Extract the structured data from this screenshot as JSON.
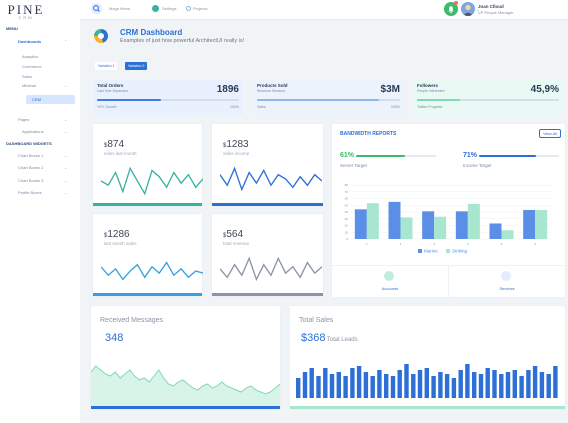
{
  "sidebar": {
    "logo": {
      "main": "PINE",
      "sub": "CRM"
    },
    "menu_header": "MENU",
    "dashboards": "Dashboards",
    "items": [
      "Analytics",
      "Commerce",
      "Sales",
      "Minimal",
      "CRM"
    ],
    "pages": "Pages",
    "applications": "Applications",
    "widgets_header": "DASHBOARD WIDGETS",
    "widgets": [
      "Chart Boxes 1",
      "Chart Boxes 2",
      "Chart Boxes 3",
      "Profile Boxes"
    ]
  },
  "topbar": {
    "mega_menu": "Mega Menu",
    "settings": "Settings",
    "projects": "Projects",
    "user_name": "Joan Clloud",
    "user_role": "VP People Manager"
  },
  "header": {
    "title": "CRM Dashboard",
    "subtitle": "Examples of just how powerful ArchitectUI really is!",
    "tabs": [
      "Variation 1",
      "Variation 2"
    ]
  },
  "stats": [
    {
      "title": "Total Orders",
      "subtitle": "Last Year Expenses",
      "value": "1896",
      "footer": "YOY Growth",
      "percent": "100%",
      "progress": 0.45,
      "color": "#3e7ee0"
    },
    {
      "title": "Products Sold",
      "subtitle": "Revenue Streams",
      "value": "$3M",
      "footer": "Sales",
      "percent": "100%",
      "progress": 0.85,
      "color": "#8fb7ee"
    },
    {
      "title": "Followers",
      "subtitle": "People Interested",
      "value": "45,9%",
      "footer": "Twitter Progress",
      "percent": "",
      "progress": 0.3,
      "color": "#7ed9b6"
    }
  ],
  "mini_cards": [
    {
      "currency": "$",
      "value": "874",
      "label": "sales last month",
      "color": "#37b3a1",
      "line": [
        18,
        14,
        26,
        8,
        30,
        18,
        6,
        28,
        22,
        12,
        26,
        16,
        24,
        12,
        20
      ]
    },
    {
      "currency": "$",
      "value": "1283",
      "label": "sales income",
      "color": "#2c6fd6",
      "line": [
        24,
        14,
        30,
        10,
        26,
        16,
        28,
        14,
        24,
        20,
        12,
        22,
        14,
        24,
        18
      ]
    },
    {
      "currency": "$",
      "value": "1286",
      "label": "last month sales",
      "color": "#38a0e0",
      "line": [
        22,
        14,
        20,
        10,
        18,
        24,
        12,
        22,
        16,
        26,
        14,
        20,
        12,
        18,
        16
      ]
    },
    {
      "currency": "$",
      "value": "564",
      "label": "total revenue",
      "color": "#8a94a6",
      "line": [
        20,
        12,
        24,
        14,
        30,
        10,
        24,
        14,
        30,
        16,
        22,
        12,
        26,
        16,
        22
      ]
    }
  ],
  "bandwidth": {
    "title": "BANDWIDTH REPORTS",
    "view_all": "View All",
    "server": {
      "pct": "61%",
      "label": "Server Target",
      "progress": 0.61
    },
    "income": {
      "pct": "71%",
      "label": "Income Target",
      "progress": 0.71
    },
    "bottom": [
      "Accounts",
      "Services"
    ]
  },
  "messages": {
    "title": "Received Messages",
    "value": "348"
  },
  "total_sales": {
    "title": "Total Sales",
    "value": "$368",
    "label": "Total Leads"
  },
  "chart_data": [
    {
      "type": "bar",
      "categories": [
        "1",
        "2",
        "3",
        "4",
        "5",
        "6"
      ],
      "ylim": [
        0,
        80
      ],
      "yticks": [
        "0",
        "10",
        "20",
        "30",
        "40",
        "50",
        "60",
        "70",
        "80"
      ],
      "series": [
        {
          "name": "Marine",
          "color": "#5b8ee6",
          "values": [
            44,
            55,
            41,
            41,
            23,
            43
          ]
        },
        {
          "name": "Striking",
          "color": "#a8e6cf",
          "values": [
            53,
            32,
            33,
            52,
            13,
            43
          ]
        }
      ],
      "legend": "bottom"
    },
    {
      "type": "area",
      "values": [
        28,
        34,
        30,
        26,
        24,
        28,
        22,
        26,
        30,
        24,
        20,
        22,
        18,
        24,
        30,
        22,
        16,
        14,
        18,
        20,
        16,
        12,
        10,
        14,
        16,
        12,
        14,
        18,
        14,
        12,
        10,
        8,
        12,
        14,
        10,
        8,
        6,
        8,
        12,
        16
      ]
    },
    {
      "type": "bar",
      "values": [
        20,
        26,
        30,
        22,
        30,
        24,
        26,
        22,
        30,
        32,
        26,
        22,
        28,
        24,
        22,
        28,
        34,
        24,
        28,
        30,
        22,
        26,
        24,
        20,
        28,
        34,
        26,
        24,
        30,
        28,
        24,
        26,
        28,
        22,
        28,
        32,
        26,
        24,
        32
      ]
    }
  ]
}
